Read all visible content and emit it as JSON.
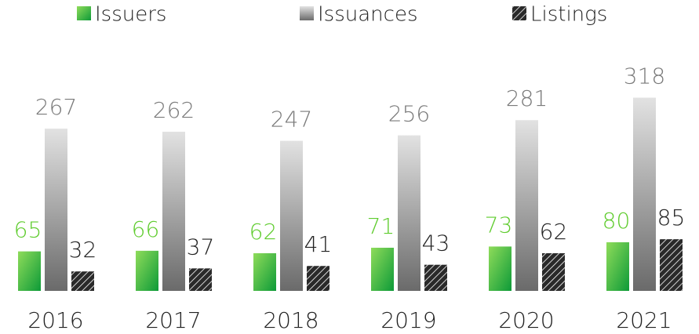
{
  "chart_data": {
    "type": "bar",
    "categories": [
      "2016",
      "2017",
      "2018",
      "2019",
      "2020",
      "2021"
    ],
    "series": [
      {
        "name": "Issuers",
        "color": "#1aa33a",
        "label_color": "#5fcc2e",
        "values": [
          65,
          66,
          62,
          71,
          73,
          80
        ]
      },
      {
        "name": "Issuances",
        "color": "#6e6e6e",
        "label_color": "#7a7a7a",
        "values": [
          267,
          262,
          247,
          256,
          281,
          318
        ]
      },
      {
        "name": "Listings",
        "color": "#2a2a2a",
        "label_color": "#222222",
        "values": [
          32,
          37,
          41,
          43,
          62,
          85
        ]
      }
    ],
    "ylim": [
      0,
      400
    ]
  }
}
